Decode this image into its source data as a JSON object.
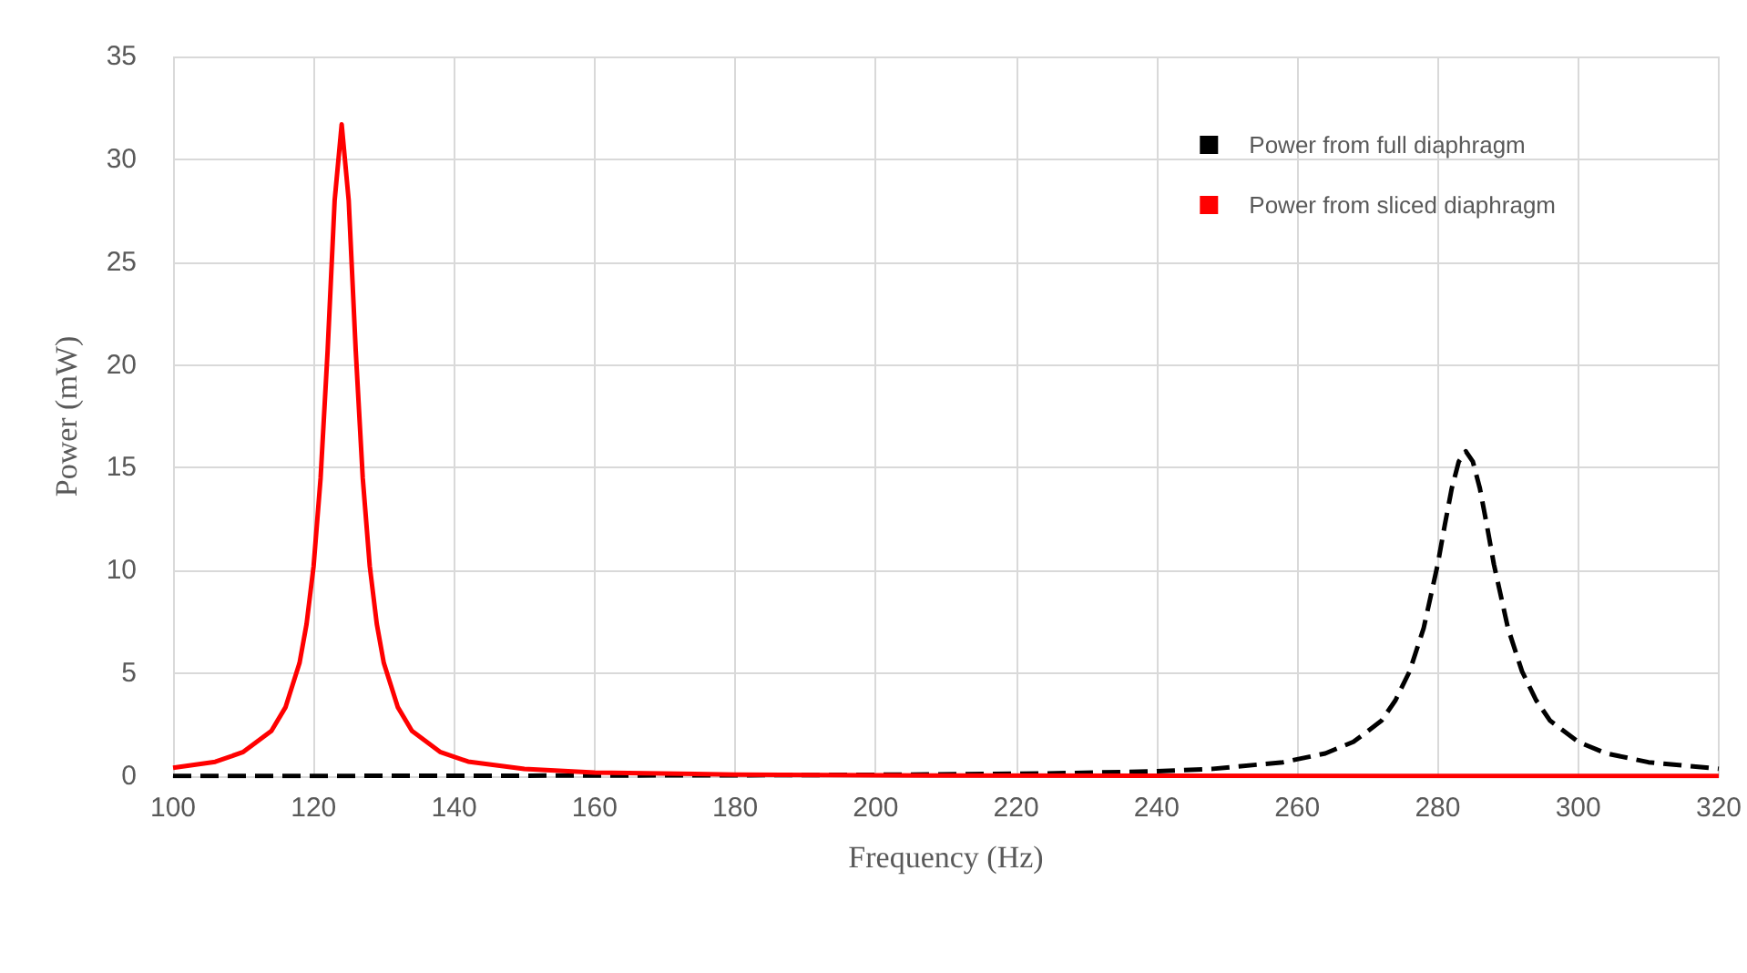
{
  "chart_data": {
    "type": "line",
    "xlabel": "Frequency (Hz)",
    "ylabel": "Power (mW)",
    "xlim": [
      100,
      320
    ],
    "xticks": [
      100,
      120,
      140,
      160,
      180,
      200,
      220,
      240,
      260,
      280,
      300,
      320
    ],
    "ylim": [
      0,
      35
    ],
    "yticks": [
      0,
      5,
      10,
      15,
      20,
      25,
      30,
      35
    ],
    "grid": true,
    "legend": "top right",
    "marker": "none",
    "series": [
      {
        "name": "Power from full diaphragm",
        "color": "#000000",
        "line_style": "dashed",
        "x": [
          100,
          140,
          184,
          200,
          224,
          240,
          248,
          258,
          264,
          268,
          272,
          274,
          276,
          278,
          280,
          281,
          282,
          283,
          284,
          285,
          286,
          287,
          288,
          290,
          292,
          294,
          296,
          300,
          304,
          310,
          320
        ],
        "values": [
          0.01,
          0.02,
          0.05,
          0.07,
          0.13,
          0.24,
          0.36,
          0.68,
          1.11,
          1.67,
          2.7,
          3.7,
          5.1,
          7.2,
          10.3,
          12.2,
          14.0,
          15.3,
          15.8,
          15.3,
          14.0,
          12.2,
          10.3,
          7.2,
          5.1,
          3.7,
          2.7,
          1.67,
          1.11,
          0.68,
          0.36
        ]
      },
      {
        "name": "Power from sliced diaphragm",
        "color": "#ff0000",
        "line_style": "solid",
        "x": [
          100,
          106,
          110,
          114,
          116,
          118,
          119,
          120,
          121,
          122,
          123,
          124,
          125,
          126,
          127,
          128,
          129,
          130,
          132,
          134,
          138,
          142,
          150,
          160,
          180,
          200,
          240,
          280,
          320
        ],
        "values": [
          0.41,
          0.7,
          1.18,
          2.2,
          3.35,
          5.5,
          7.4,
          10.2,
          14.5,
          20.7,
          28.0,
          31.7,
          28.0,
          20.7,
          14.5,
          10.2,
          7.4,
          5.5,
          3.35,
          2.2,
          1.18,
          0.71,
          0.35,
          0.18,
          0.08,
          0.04,
          0.02,
          0.01,
          0.01
        ]
      }
    ]
  }
}
